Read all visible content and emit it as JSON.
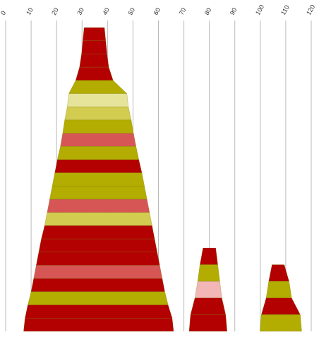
{
  "chart_data": {
    "type": "area",
    "subtype": "stacked-trapezoid-silhouettes",
    "x_axis": {
      "position": "top",
      "range": [
        0,
        120
      ],
      "ticks": [
        0,
        10,
        20,
        30,
        40,
        50,
        60,
        70,
        80,
        90,
        100,
        110,
        120
      ],
      "tick_labels": [
        "0",
        "10",
        "20",
        "30",
        "40",
        "50",
        "60",
        "70",
        "80",
        "90",
        "100",
        "110",
        "120"
      ],
      "label_rotation": "-60deg",
      "grid": true
    },
    "colors": {
      "dark_red": "#b30000",
      "olive": "#b2ad00",
      "coral": "#d65656",
      "light_olive": "#d2cc50",
      "pale_yellow": "#e6e39a",
      "pink": "#f2b6b6",
      "gridline": "#b9b9b9"
    },
    "shapes": [
      {
        "layers": [
          {
            "left": 30.8,
            "right": 38.8,
            "color": "dark_red"
          },
          {
            "left": 30.3,
            "right": 39.3,
            "color": "dark_red"
          },
          {
            "left": 29.8,
            "right": 39.8,
            "color": "dark_red"
          },
          {
            "left": 29.0,
            "right": 40.5,
            "color": "dark_red"
          },
          {
            "left": 27.5,
            "right": 42.2,
            "color": "olive"
          },
          {
            "left": 24.8,
            "right": 47.6,
            "color": "pale_yellow"
          },
          {
            "left": 24.2,
            "right": 48.2,
            "color": "light_olive"
          },
          {
            "left": 23.2,
            "right": 49.3,
            "color": "olive"
          },
          {
            "left": 22.4,
            "right": 50.2,
            "color": "coral"
          },
          {
            "left": 21.5,
            "right": 51.2,
            "color": "olive"
          },
          {
            "left": 20.3,
            "right": 52.3,
            "color": "dark_red"
          },
          {
            "left": 19.3,
            "right": 53.5,
            "color": "olive"
          },
          {
            "left": 18.3,
            "right": 54.5,
            "color": "olive"
          },
          {
            "left": 17.3,
            "right": 55.5,
            "color": "coral"
          },
          {
            "left": 16.3,
            "right": 56.5,
            "color": "light_olive"
          },
          {
            "left": 15.3,
            "right": 57.5,
            "color": "dark_red"
          },
          {
            "left": 14.0,
            "right": 58.5,
            "color": "dark_red"
          },
          {
            "left": 13.0,
            "right": 59.5,
            "color": "dark_red"
          },
          {
            "left": 12.0,
            "right": 60.5,
            "color": "coral"
          },
          {
            "left": 11.0,
            "right": 61.5,
            "color": "dark_red"
          },
          {
            "left": 10.0,
            "right": 62.5,
            "color": "olive"
          },
          {
            "left": 8.7,
            "right": 63.8,
            "color": "dark_red"
          },
          {
            "left": 7.6,
            "right": 65.4,
            "color": "dark_red"
          }
        ]
      },
      {
        "layers": [
          {
            "left": 77.5,
            "right": 82.5,
            "color": "dark_red"
          },
          {
            "left": 76.3,
            "right": 83.3,
            "color": "olive"
          },
          {
            "left": 75.4,
            "right": 84.1,
            "color": "pink"
          },
          {
            "left": 74.3,
            "right": 84.9,
            "color": "dark_red"
          },
          {
            "left": 72.6,
            "right": 86.4,
            "color": "dark_red"
          }
        ]
      },
      {
        "layers": [
          {
            "left": 104.6,
            "right": 109.4,
            "color": "dark_red"
          },
          {
            "left": 103.3,
            "right": 111.3,
            "color": "olive"
          },
          {
            "left": 102.3,
            "right": 112.3,
            "color": "dark_red"
          },
          {
            "left": 100.4,
            "right": 115.7,
            "color": "olive"
          }
        ]
      }
    ]
  }
}
